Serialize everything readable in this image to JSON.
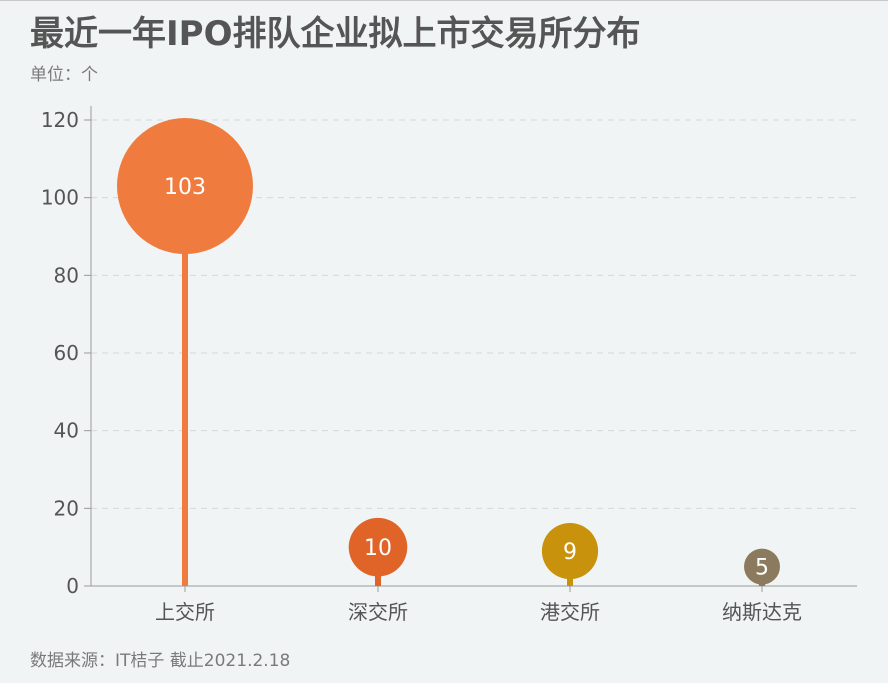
{
  "title": "最近一年IPO排队企业拟上市交易所分布",
  "unit_label": "单位：个",
  "source": "数据来源：IT桔子 截止2021.2.18",
  "chart_data": {
    "type": "lollipop",
    "categories": [
      "上交所",
      "深交所",
      "港交所",
      "纳斯达克"
    ],
    "values": [
      103,
      10,
      9,
      5
    ],
    "colors": [
      "#ef7b3e",
      "#e06428",
      "#c8920c",
      "#8c7a5e"
    ],
    "ylim": [
      0,
      120
    ],
    "yticks": [
      0,
      20,
      40,
      60,
      80,
      100,
      120
    ],
    "grid": true
  }
}
